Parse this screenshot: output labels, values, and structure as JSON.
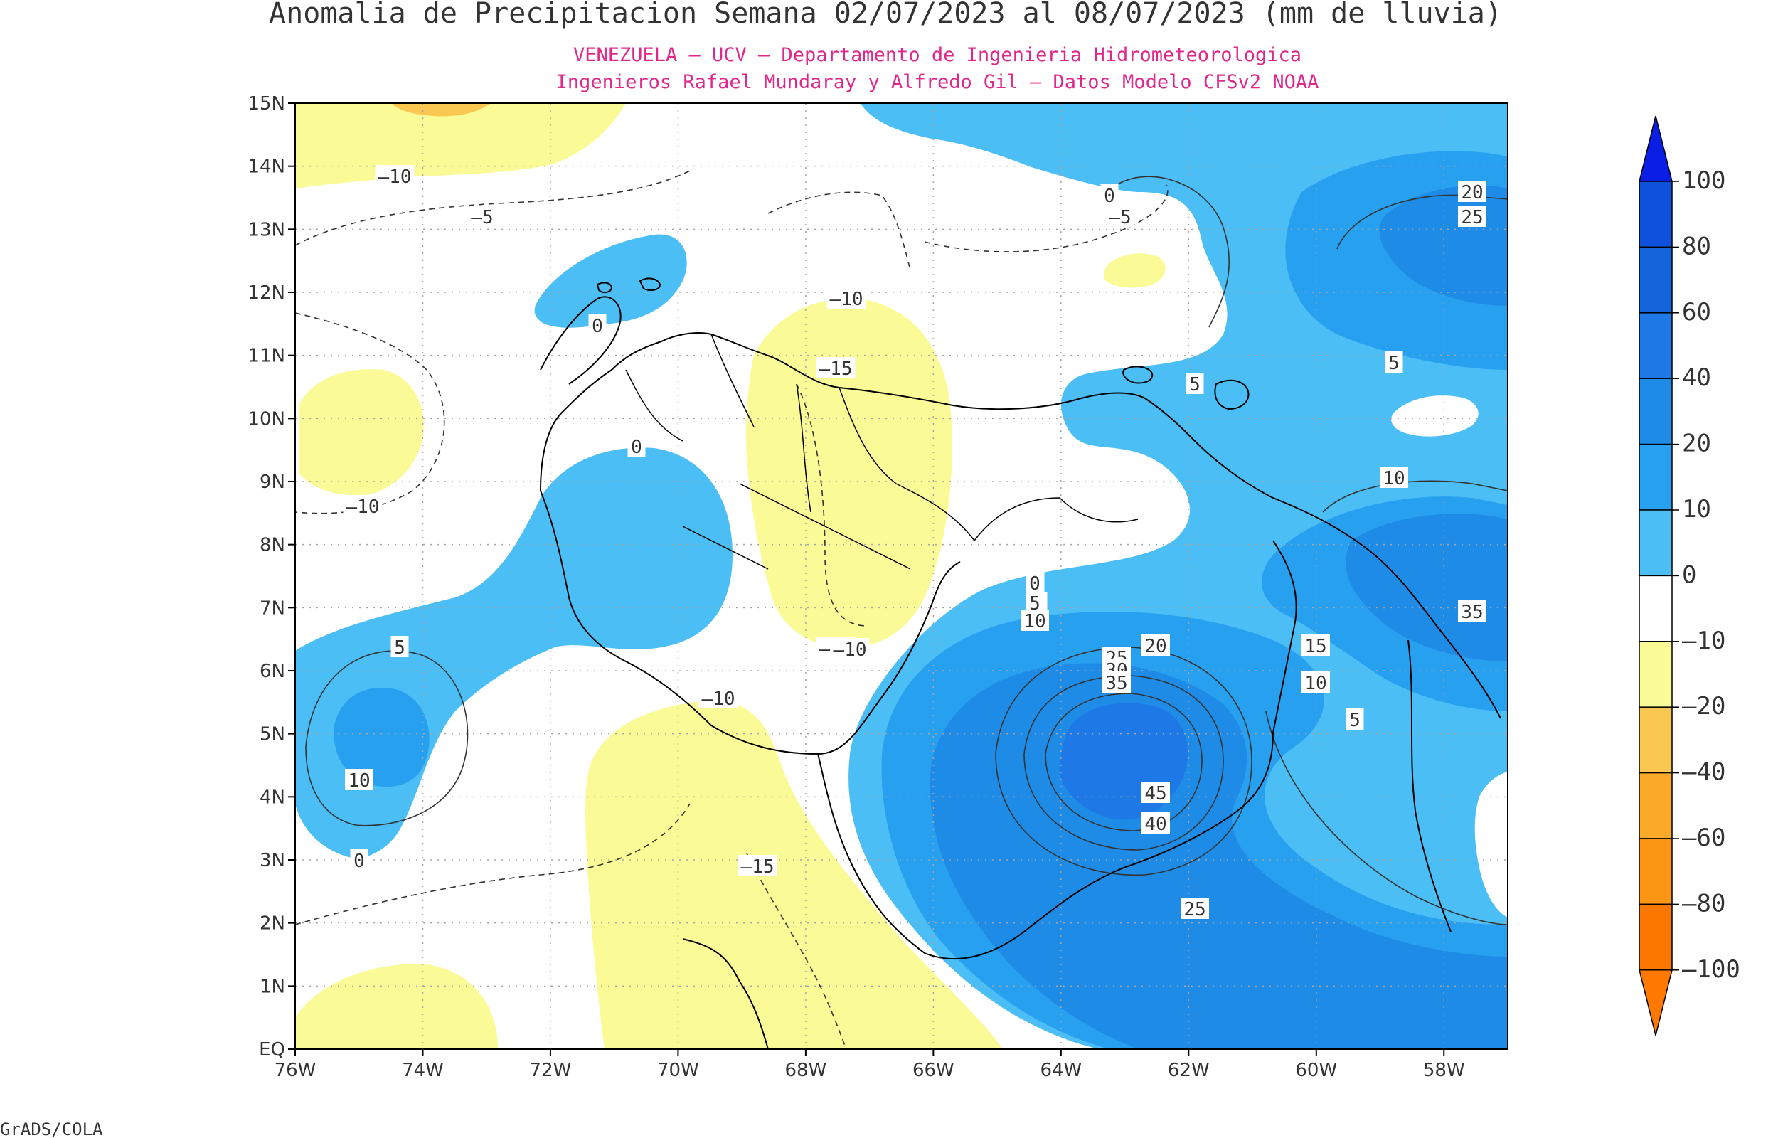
{
  "header": {
    "title": "Anomalia de Precipitacion Semana 02/07/2023 al 08/07/2023 (mm de lluvia)",
    "subtitle1": "VENEZUELA – UCV – Departamento de Ingenieria Hidrometeorologica",
    "subtitle2": "Ingenieros Rafael Mundaray y Alfredo Gil – Datos Modelo CFSv2 NOAA"
  },
  "axes": {
    "lat_labels": [
      "15N",
      "14N",
      "13N",
      "12N",
      "11N",
      "10N",
      "9N",
      "8N",
      "7N",
      "6N",
      "5N",
      "4N",
      "3N",
      "2N",
      "1N",
      "EQ"
    ],
    "lon_labels": [
      "76W",
      "74W",
      "72W",
      "70W",
      "68W",
      "66W",
      "64W",
      "62W",
      "60W",
      "58W"
    ],
    "lat_range": [
      0,
      15
    ],
    "lon_range": [
      -76,
      -57
    ]
  },
  "colorbar": {
    "labels": [
      "100",
      "80",
      "60",
      "40",
      "20",
      "10",
      "0",
      "–10",
      "–20",
      "–40",
      "–60",
      "–80",
      "–100"
    ],
    "colors": [
      "#0a1ee6",
      "#0f50dc",
      "#1464dc",
      "#1e78e6",
      "#1e8ce6",
      "#28a0f0",
      "#4bbef6",
      "#ffffff",
      "#fafa96",
      "#fac850",
      "#faaa28",
      "#fa9614",
      "#fa7800",
      "#ff7800"
    ]
  },
  "contour_labels": [
    "–10",
    "–5",
    "0",
    "–10",
    "–15",
    "0",
    "–10",
    "0",
    "5",
    "–10",
    "5",
    "10",
    "0",
    "–10",
    "–15",
    "–10",
    "0",
    "–5",
    "20",
    "25",
    "5",
    "10",
    "5",
    "0",
    "5",
    "10",
    "20",
    "25",
    "30",
    "35",
    "15",
    "10",
    "5",
    "45",
    "40",
    "25",
    "35"
  ],
  "fills": {
    "blue0": "#4bbef6",
    "blue10": "#28a0f0",
    "blue20": "#1e8ce6",
    "blue40": "#1e78e6",
    "yellow": "#fafa96",
    "orange": "#fac850"
  },
  "footer": {
    "credit": "GrADS/COLA"
  }
}
